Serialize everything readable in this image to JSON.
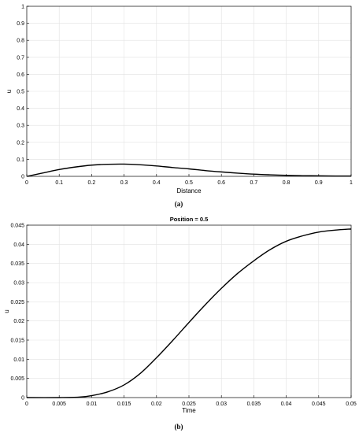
{
  "chart_data": [
    {
      "type": "line",
      "panel_caption": "(a)",
      "title": "",
      "xlabel": "Distance",
      "ylabel": "u",
      "xlim": [
        0,
        1
      ],
      "ylim": [
        0,
        1
      ],
      "grid": true,
      "xticks": [
        "0",
        "0.1",
        "0.2",
        "0.3",
        "0.4",
        "0.5",
        "0.6",
        "0.7",
        "0.8",
        "0.9",
        "1"
      ],
      "yticks": [
        "0",
        "0.1",
        "0.2",
        "0.3",
        "0.4",
        "0.5",
        "0.6",
        "0.7",
        "0.8",
        "0.9",
        "1"
      ],
      "series": [
        {
          "color": "#000000",
          "x": [
            0,
            0.05,
            0.1,
            0.15,
            0.2,
            0.25,
            0.3,
            0.35,
            0.4,
            0.45,
            0.5,
            0.55,
            0.6,
            0.65,
            0.7,
            0.75,
            0.8,
            0.85,
            0.9,
            0.95,
            1
          ],
          "y": [
            0,
            0.02,
            0.04,
            0.055,
            0.066,
            0.071,
            0.072,
            0.068,
            0.061,
            0.052,
            0.044,
            0.034,
            0.026,
            0.019,
            0.013,
            0.009,
            0.006,
            0.004,
            0.003,
            0.002,
            0.002
          ]
        }
      ]
    },
    {
      "type": "line",
      "panel_caption": "(b)",
      "title": "Position = 0.5",
      "xlabel": "Time",
      "ylabel": "u",
      "xlim": [
        0,
        0.05
      ],
      "ylim": [
        0,
        0.045
      ],
      "grid": true,
      "xticks": [
        "0",
        "0.005",
        "0.01",
        "0.015",
        "0.02",
        "0.025",
        "0.03",
        "0.035",
        "0.04",
        "0.045",
        "0.05"
      ],
      "yticks": [
        "0",
        "0.005",
        "0.01",
        "0.015",
        "0.02",
        "0.025",
        "0.03",
        "0.035",
        "0.04",
        "0.045"
      ],
      "series": [
        {
          "color": "#000000",
          "x": [
            0,
            0.005,
            0.008,
            0.01,
            0.0125,
            0.015,
            0.0175,
            0.02,
            0.0225,
            0.025,
            0.0275,
            0.03,
            0.0325,
            0.035,
            0.0375,
            0.04,
            0.0425,
            0.045,
            0.0475,
            0.05
          ],
          "y": [
            0,
            0,
            0.0001,
            0.0005,
            0.0015,
            0.0033,
            0.0063,
            0.0104,
            0.0149,
            0.0196,
            0.0242,
            0.0285,
            0.0324,
            0.0357,
            0.0386,
            0.0408,
            0.0422,
            0.0432,
            0.0437,
            0.044
          ]
        }
      ]
    }
  ]
}
